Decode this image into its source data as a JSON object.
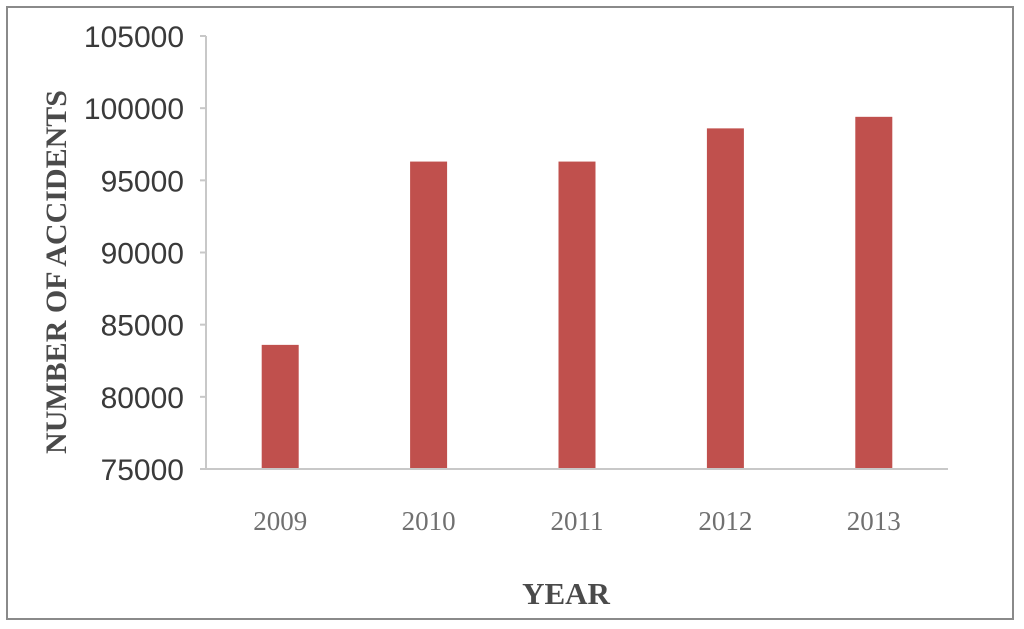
{
  "chart_data": {
    "type": "bar",
    "categories": [
      "2009",
      "2010",
      "2011",
      "2012",
      "2013"
    ],
    "values": [
      83600,
      96300,
      96300,
      98600,
      99400
    ],
    "title": "",
    "xlabel": "YEAR",
    "ylabel": "NUMBER OF ACCIDENTS",
    "ylim": [
      75000,
      105000
    ],
    "yticks": [
      "105000",
      "100000",
      "95000",
      "90000",
      "85000",
      "80000",
      "75000"
    ],
    "grid": false,
    "bar_color": "#c0504d"
  }
}
